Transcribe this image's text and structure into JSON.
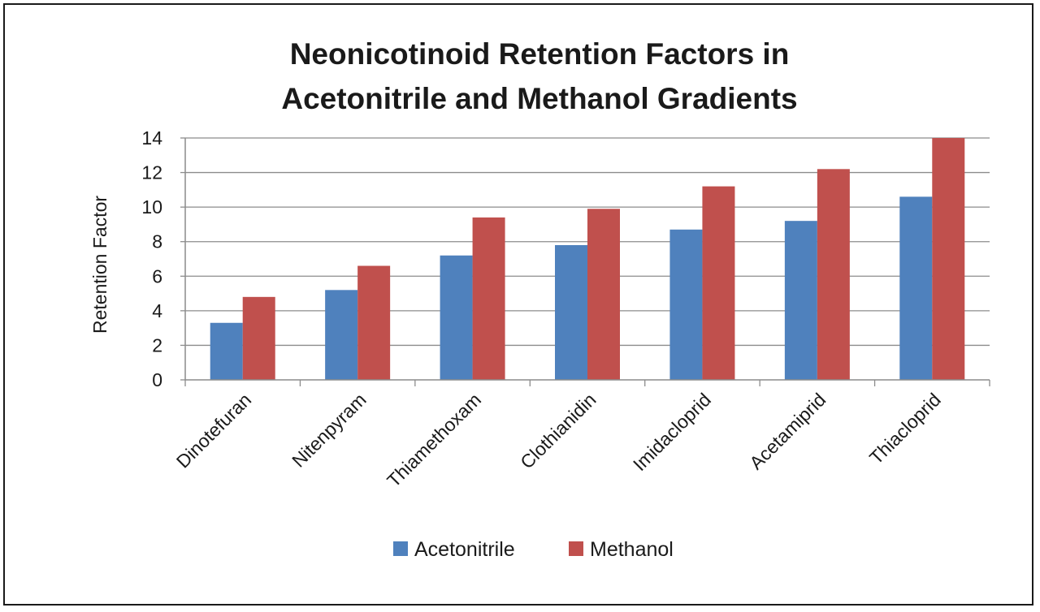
{
  "chart_data": {
    "type": "bar",
    "title": [
      "Neonicotinoid Retention Factors in",
      "Acetonitrile and Methanol Gradients"
    ],
    "xlabel": "",
    "ylabel": "Retention Factor",
    "ylim": [
      0,
      14
    ],
    "ytick_step": 2,
    "grid": true,
    "legend_position": "bottom",
    "categories": [
      "Dinotefuran",
      "Nitenpyram",
      "Thiamethoxam",
      "Clothianidin",
      "Imidacloprid",
      "Acetamiprid",
      "Thiacloprid"
    ],
    "series": [
      {
        "name": "Acetonitrile",
        "color": "#4f81bd",
        "values": [
          3.3,
          5.2,
          7.2,
          7.8,
          8.7,
          9.2,
          10.6
        ]
      },
      {
        "name": "Methanol",
        "color": "#c0504d",
        "values": [
          4.8,
          6.6,
          9.4,
          9.9,
          11.2,
          12.2,
          14.0
        ]
      }
    ]
  }
}
